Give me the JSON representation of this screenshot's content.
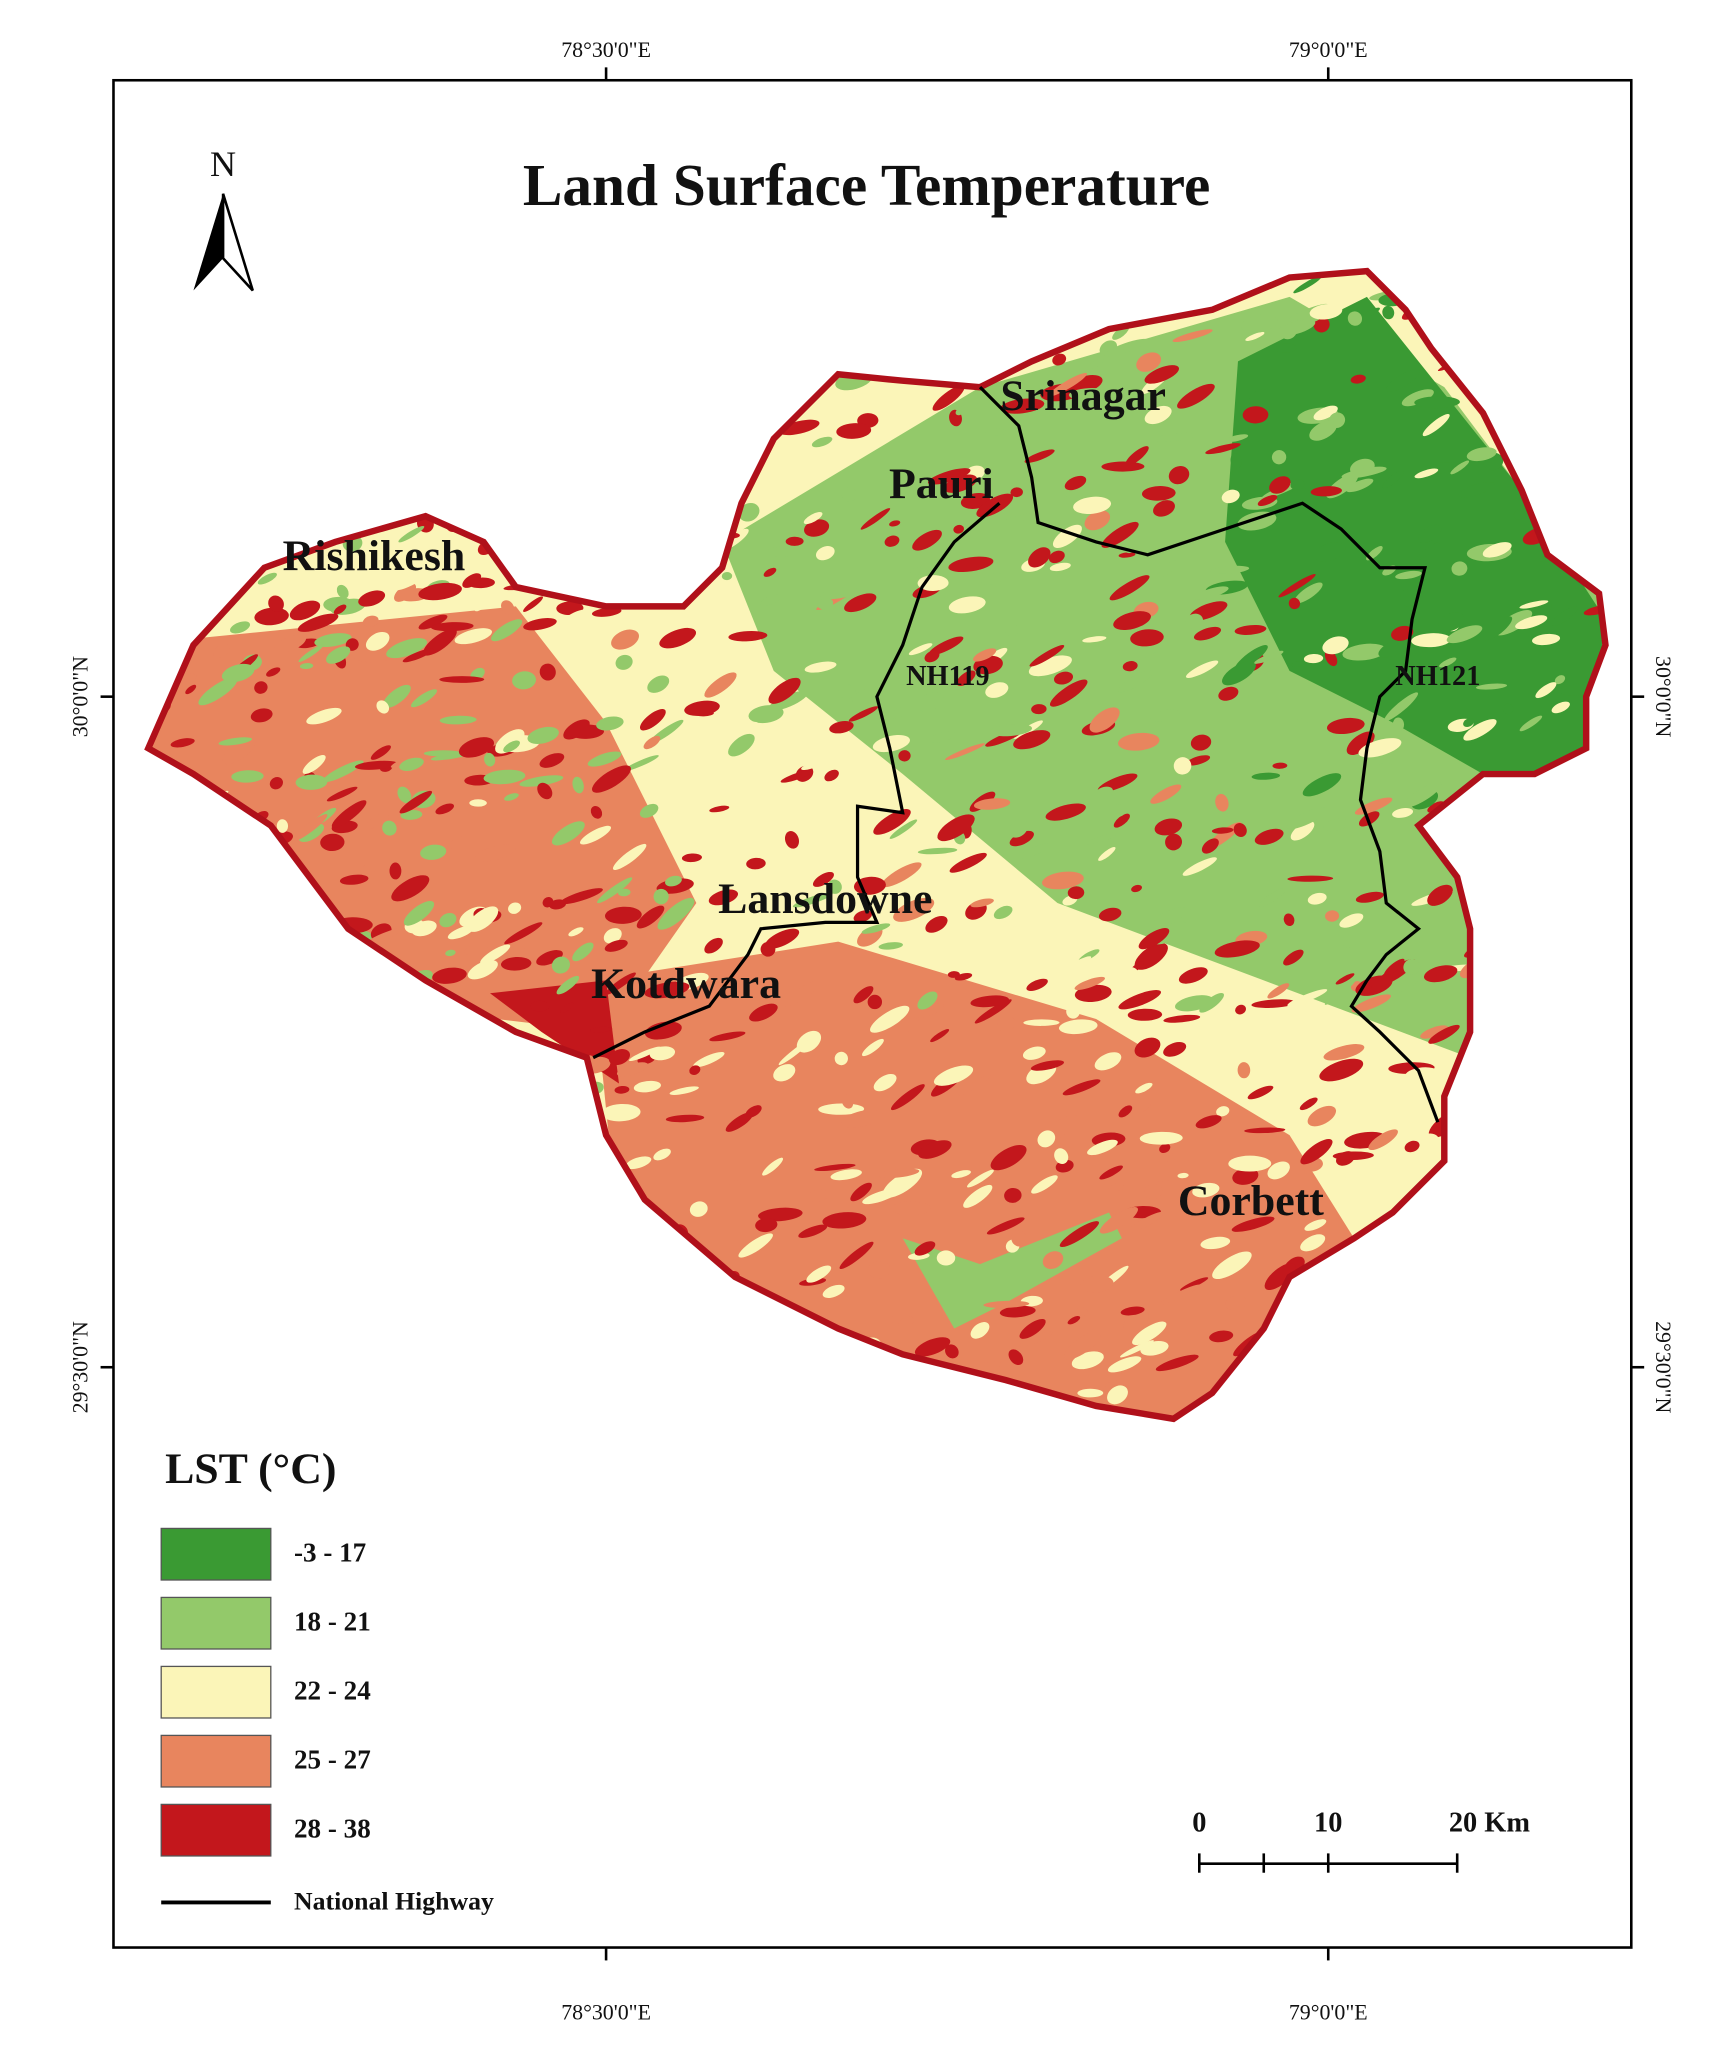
{
  "title": "Land Surface Temperature",
  "north_arrow": "N",
  "graticule": {
    "top": [
      "78°30'0\"E",
      "79°0'0\"E"
    ],
    "bottom": [
      "78°30'0\"E",
      "79°0'0\"E"
    ],
    "left": [
      "30°0'0\"N",
      "29°30'0\"N"
    ],
    "right": [
      "30°0'0\"N",
      "29°30'0\"N"
    ]
  },
  "places": [
    "Srinagar",
    "Pauri",
    "Rishikesh",
    "Lansdowne",
    "Kotdwara",
    "Corbett"
  ],
  "highways": [
    "NH119",
    "NH121"
  ],
  "legend": {
    "title": "LST (°C)",
    "classes": [
      {
        "label": "-3 - 17",
        "color": "#3a9a33"
      },
      {
        "label": "18 - 21",
        "color": "#93c96a"
      },
      {
        "label": "22 - 24",
        "color": "#fbf5b8"
      },
      {
        "label": "25 - 27",
        "color": "#e8855e"
      },
      {
        "label": "28 - 38",
        "color": "#c3171c"
      }
    ],
    "highway": "National Highway"
  },
  "scale_bar": {
    "labels": [
      "0",
      "10",
      "20 Km"
    ]
  }
}
